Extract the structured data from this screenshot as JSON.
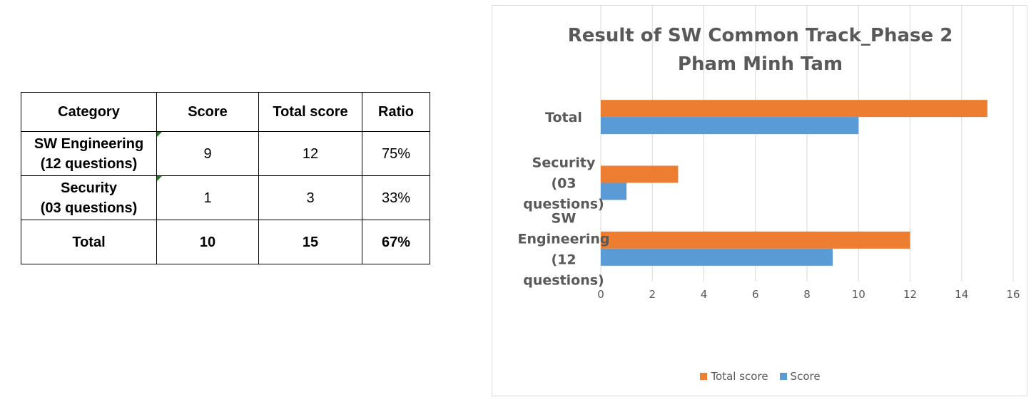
{
  "table": {
    "headers": [
      "Category",
      "Score",
      "Total score",
      "Ratio"
    ],
    "rows": [
      {
        "category_line1": "SW Engineering",
        "category_line2": "(12 questions)",
        "score": "9",
        "total": "12",
        "ratio": "75%"
      },
      {
        "category_line1": "Security",
        "category_line2": "(03 questions)",
        "score": "1",
        "total": "3",
        "ratio": "33%"
      }
    ],
    "total_row": {
      "category": "Total",
      "score": "10",
      "total": "15",
      "ratio": "67%"
    }
  },
  "chart_data": {
    "type": "bar",
    "orientation": "horizontal",
    "title_line1": "Result of SW Common Track_Phase 2",
    "title_line2": "Pham Minh Tam",
    "categories": [
      [
        "Total"
      ],
      [
        "Security",
        "(03",
        "questions)"
      ],
      [
        "SW",
        "Engineering",
        "(12",
        "questions)"
      ]
    ],
    "series": [
      {
        "name": "Total score",
        "color": "#ed7d31",
        "values": [
          15,
          3,
          12
        ]
      },
      {
        "name": "Score",
        "color": "#5b9bd5",
        "values": [
          10,
          1,
          9
        ]
      }
    ],
    "xlim": [
      0,
      16
    ],
    "xticks": [
      0,
      2,
      4,
      6,
      8,
      10,
      12,
      14,
      16
    ],
    "grid": true,
    "legend_position": "bottom"
  }
}
